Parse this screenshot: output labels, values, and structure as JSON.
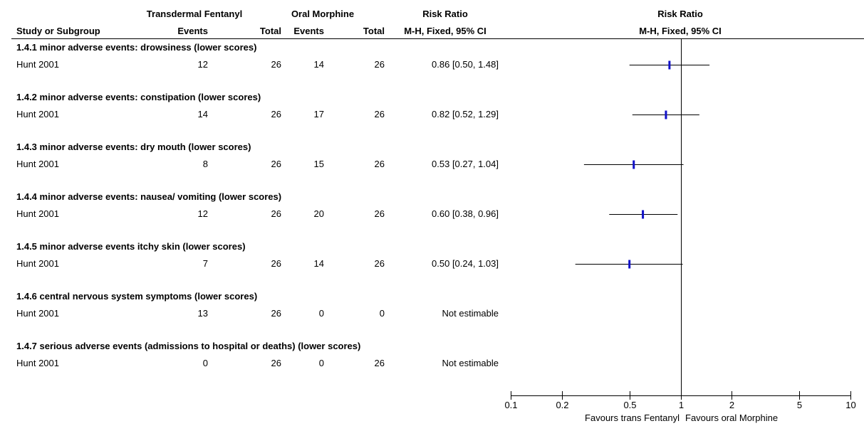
{
  "header": {
    "group1": "Transdermal Fentanyl",
    "group2": "Oral Morphine",
    "effect": "Risk Ratio",
    "plot_title": "Risk Ratio",
    "study_col": "Study or Subgroup",
    "events1": "Events",
    "total1": "Total",
    "events2": "Events",
    "total2": "Total",
    "method": "M-H, Fixed, 95% CI",
    "plot_method": "M-H, Fixed, 95% CI"
  },
  "subgroups": [
    {
      "title": "1.4.1 minor adverse events: drowsiness (lower scores)",
      "study": "Hunt 2001",
      "e1": "12",
      "t1": "26",
      "e2": "14",
      "t2": "26",
      "ci": "0.86 [0.50, 1.48]"
    },
    {
      "title": "1.4.2 minor adverse events: constipation (lower scores)",
      "study": "Hunt 2001",
      "e1": "14",
      "t1": "26",
      "e2": "17",
      "t2": "26",
      "ci": "0.82 [0.52, 1.29]"
    },
    {
      "title": "1.4.3 minor adverse events: dry mouth (lower scores)",
      "study": "Hunt 2001",
      "e1": "8",
      "t1": "26",
      "e2": "15",
      "t2": "26",
      "ci": "0.53 [0.27, 1.04]"
    },
    {
      "title": "1.4.4 minor adverse events: nausea/ vomiting (lower scores)",
      "study": "Hunt 2001",
      "e1": "12",
      "t1": "26",
      "e2": "20",
      "t2": "26",
      "ci": "0.60 [0.38, 0.96]"
    },
    {
      "title": "1.4.5 minor adverse events itchy skin (lower scores)",
      "study": "Hunt 2001",
      "e1": "7",
      "t1": "26",
      "e2": "14",
      "t2": "26",
      "ci": "0.50 [0.24, 1.03]"
    },
    {
      "title": "1.4.6 central nervous system symptoms (lower scores)",
      "study": "Hunt 2001",
      "e1": "13",
      "t1": "26",
      "e2": "0",
      "t2": "0",
      "ci": "Not estimable"
    },
    {
      "title": "1.4.7 serious adverse events (admissions to hospital or deaths) (lower scores)",
      "study": "Hunt 2001",
      "e1": "0",
      "t1": "26",
      "e2": "0",
      "t2": "26",
      "ci": "Not estimable"
    }
  ],
  "axis": {
    "favours_left": "Favours trans Fentanyl",
    "favours_right": "Favours oral Morphine"
  },
  "colors": {
    "point": "#1010c8",
    "line": "#000000"
  },
  "chart_data": {
    "type": "forest",
    "scale": "log",
    "xlim": [
      0.1,
      10
    ],
    "reference_line": 1,
    "ticks": [
      0.1,
      0.2,
      0.5,
      1,
      2,
      5,
      10
    ],
    "tick_labels": [
      "0.1",
      "0.2",
      "0.5",
      "1",
      "2",
      "5",
      "10"
    ],
    "estimates": [
      {
        "rr": 0.86,
        "lo": 0.5,
        "hi": 1.48
      },
      {
        "rr": 0.82,
        "lo": 0.52,
        "hi": 1.29
      },
      {
        "rr": 0.53,
        "lo": 0.27,
        "hi": 1.04
      },
      {
        "rr": 0.6,
        "lo": 0.38,
        "hi": 0.96
      },
      {
        "rr": 0.5,
        "lo": 0.24,
        "hi": 1.03
      },
      null,
      null
    ]
  }
}
